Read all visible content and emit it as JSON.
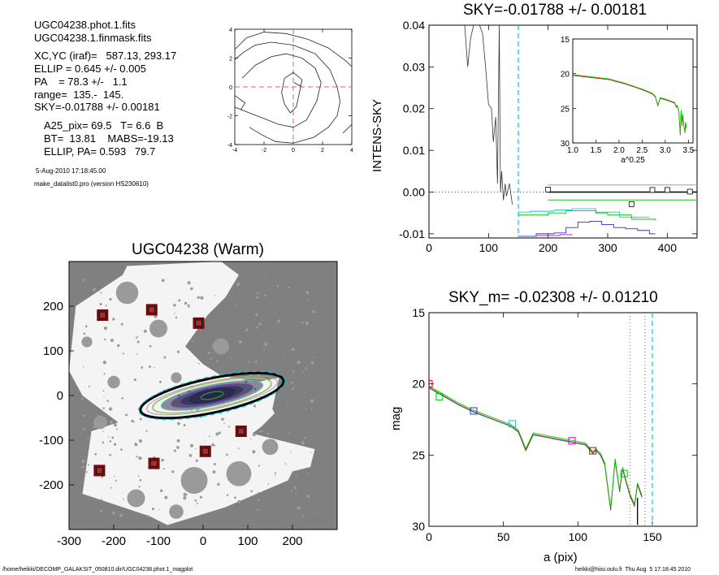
{
  "header": {
    "lines": [
      "UGC04238.phot.1.fits",
      "UGC04238.1.finmask.fits",
      "XC,YC (iraf)=   587.13, 293.17",
      "ELLIP = 0.645 +/- 0.005",
      "PA    = 78.3 +/-   1.1",
      "range=  135.-  145.",
      "SKY=-0.01788 +/- 0.00181",
      "A25_pix= 69.5   T= 6.6  B",
      "BT=  13.81    MABS=-19.13",
      "ELLIP, PA= 0.593   79.7",
      "5-Aug-2010 17:18:45.00",
      "make_datalist0.pro (version HS230610)"
    ]
  },
  "footer": {
    "left": "/home/heikki/DECOMP_GALAKSIT_050810.dir/UGC04238.phot.1_magplot",
    "right": "heikki@hiisi.oulu.fi  Thu Aug  5 17:18:45 2010"
  },
  "colors": {
    "axis": "#000000",
    "red_dash": "#e06060",
    "cyan": "#00c8d8",
    "green": "#00cc00",
    "blue": "#3030d0",
    "magenta": "#cc00cc",
    "red": "#cc0000",
    "gray": "#808080",
    "dark_red_box": "#7a0000"
  },
  "chart_data": [
    {
      "type": "contour",
      "title": "",
      "xlim": [
        -4,
        4
      ],
      "ylim": [
        -4,
        4
      ],
      "xticks": [
        "-4",
        "-2",
        "0",
        "2",
        "4"
      ],
      "yticks": [
        "-4",
        "-2",
        "0",
        "2",
        "4"
      ],
      "crosshair": [
        0,
        0
      ]
    },
    {
      "type": "line",
      "title": "SKY=-0.01788 +/- 0.00181",
      "ylabel": "INTENS-SKY",
      "xlim": [
        0,
        450
      ],
      "ylim": [
        -0.011,
        0.04
      ],
      "xticks": [
        "0",
        "100",
        "200",
        "300",
        "400"
      ],
      "yticks": [
        "-0.01",
        "0.00",
        "0.01",
        "0.02",
        "0.03",
        "0.04"
      ],
      "profile_x": [
        60,
        65,
        70,
        75,
        80,
        85,
        90,
        95,
        100,
        105,
        108,
        112,
        115,
        118,
        120,
        122,
        125,
        128,
        130,
        135,
        140
      ],
      "profile_y": [
        0.04,
        0.03,
        0.037,
        0.04,
        0.04,
        0.04,
        0.038,
        0.03,
        0.021,
        0.02,
        0.012,
        0.018,
        0.002,
        0.04,
        0.0,
        0.005,
        -0.002,
        0.002,
        -0.001,
        0.002,
        -0.003
      ],
      "cyan_vline": 150,
      "sky_level": 0.0,
      "boxes": [
        [
          200,
          0.0006
        ],
        [
          340,
          -0.0029
        ],
        [
          375,
          0.0005
        ],
        [
          400,
          0.0005
        ],
        [
          438,
          0.0001
        ]
      ],
      "inset": {
        "xlabel": "a^0.25",
        "xlim": [
          1.0,
          3.6
        ],
        "ylim": [
          15,
          30
        ],
        "xticks": [
          "1.0",
          "1.5",
          "2.0",
          "2.5",
          "3.0",
          "3.5"
        ],
        "yticks": [
          "15",
          "20",
          "25",
          "30"
        ]
      }
    },
    {
      "type": "image",
      "title": "UGC04238 (Warm)",
      "xlim": [
        -300,
        300
      ],
      "ylim": [
        -300,
        300
      ],
      "xticks": [
        "-300",
        "-200",
        "-100",
        "0",
        "100",
        "200"
      ],
      "yticks": [
        "-200",
        "-100",
        "0",
        "100",
        "200"
      ],
      "sky_boxes": [
        [
          -225,
          180
        ],
        [
          -115,
          192
        ],
        [
          -10,
          162
        ],
        [
          85,
          -80
        ],
        [
          5,
          -125
        ],
        [
          -110,
          -152
        ],
        [
          -232,
          -168
        ]
      ]
    },
    {
      "type": "line",
      "title": "SKY_m= -0.02308 +/- 0.01210",
      "xlabel": "a (pix)",
      "ylabel": "mag",
      "xlim": [
        0,
        180
      ],
      "ylim": [
        15,
        30
      ],
      "xticks": [
        "0",
        "50",
        "100",
        "150"
      ],
      "yticks": [
        "15",
        "20",
        "25",
        "30"
      ],
      "x": [
        0,
        10,
        20,
        30,
        40,
        50,
        55,
        60,
        65,
        70,
        75,
        80,
        85,
        90,
        95,
        100,
        105,
        110,
        112,
        115,
        118,
        120,
        122,
        125,
        128,
        130,
        132,
        135,
        138,
        140,
        143
      ],
      "y": [
        20.2,
        20.8,
        21.4,
        21.9,
        22.3,
        22.7,
        22.9,
        23.3,
        24.6,
        23.5,
        23.6,
        23.7,
        23.8,
        23.9,
        24.0,
        24.1,
        24.2,
        24.8,
        24.6,
        24.9,
        25.6,
        27.2,
        28.8,
        25.3,
        27.5,
        25.9,
        26.7,
        27.8,
        28.5,
        27.0,
        27.9
      ],
      "dotted_vlines": [
        135,
        145
      ],
      "cyan_vline": 150,
      "markers": [
        [
          0,
          20.0,
          "red"
        ],
        [
          7,
          20.9,
          "green"
        ],
        [
          30,
          21.9,
          "blue"
        ],
        [
          56,
          22.8,
          "cyan"
        ],
        [
          96,
          24.0,
          "magenta"
        ],
        [
          110,
          24.7,
          "red"
        ],
        [
          131,
          26.3,
          "green"
        ]
      ]
    }
  ]
}
